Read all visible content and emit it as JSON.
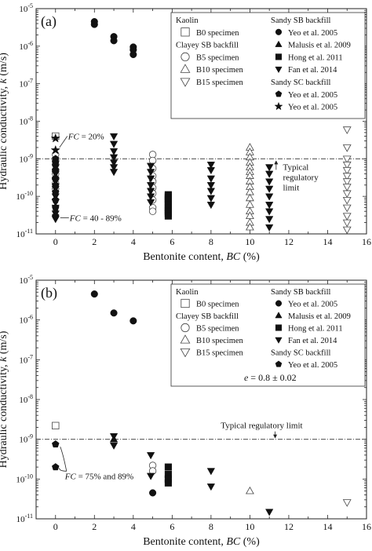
{
  "chart_data": [
    {
      "type": "scatter",
      "panel_label": "(a)",
      "xlabel": "Bentonite content, BC (%)",
      "ylabel": "Hydraulic conductivity, k (m/s)",
      "xlim": [
        -1,
        16
      ],
      "ylim_log10": [
        -11,
        -5
      ],
      "xticks": [
        "0",
        "2",
        "4",
        "6",
        "8",
        "10",
        "12",
        "14",
        "16"
      ],
      "yticks": [
        "10-11",
        "10-10",
        "10-9",
        "10-8",
        "10-7",
        "10-6",
        "10-5"
      ],
      "limit_value": 1e-09,
      "limit_label": [
        "Typical",
        "regulatory",
        "limit"
      ],
      "annotations": [
        "FC = 20%",
        "FC = 40 - 89%"
      ],
      "legend_left": [
        {
          "header": "Kaolin"
        },
        {
          "marker": "square-open",
          "name": "B0 specimen"
        },
        {
          "header": "Clayey SB backfill"
        },
        {
          "marker": "circle-open",
          "name": "B5 specimen"
        },
        {
          "marker": "triangle-up-open",
          "name": "B10 specimen"
        },
        {
          "marker": "triangle-down-open",
          "name": "B15 specimen"
        }
      ],
      "legend_right": [
        {
          "header": "Sandy SB backfill"
        },
        {
          "marker": "circle-fill",
          "name": "Yeo et al. 2005"
        },
        {
          "marker": "triangle-up-fill",
          "name": "Malusis et al. 2009"
        },
        {
          "marker": "square-fill",
          "name": "Hong et al. 2011"
        },
        {
          "marker": "triangle-down-fill",
          "name": "Fan et al. 2014"
        },
        {
          "header": "Sandy SC backfill"
        },
        {
          "marker": "pentagon-fill",
          "name": "Yeo et al. 2005"
        },
        {
          "marker": "star-fill",
          "name": "Yeo et al. 2005"
        }
      ],
      "series": [
        {
          "marker": "square-open",
          "points": [
            [
              0,
              4e-09
            ]
          ]
        },
        {
          "marker": "circle-open",
          "points": [
            [
              0,
              1.3e-09
            ],
            [
              0,
              9e-10
            ],
            [
              0,
              7e-10
            ],
            [
              0,
              5e-10
            ],
            [
              0,
              4e-10
            ],
            [
              0,
              3e-10
            ],
            [
              0,
              2.2e-10
            ],
            [
              0,
              1.6e-10
            ],
            [
              5,
              1.3e-09
            ],
            [
              5,
              9e-10
            ],
            [
              5,
              5.5e-10
            ],
            [
              5,
              3.5e-10
            ],
            [
              5,
              2.5e-10
            ],
            [
              5,
              1.7e-10
            ],
            [
              5,
              1.2e-10
            ],
            [
              5,
              8e-11
            ],
            [
              5,
              5e-11
            ],
            [
              5,
              4e-11
            ]
          ]
        },
        {
          "marker": "triangle-up-open",
          "points": [
            [
              10,
              2e-09
            ],
            [
              10,
              1.5e-09
            ],
            [
              10,
              1.1e-09
            ],
            [
              10,
              8e-10
            ],
            [
              10,
              6e-10
            ],
            [
              10,
              4.5e-10
            ],
            [
              10,
              3.5e-10
            ],
            [
              10,
              2.5e-10
            ],
            [
              10,
              1.8e-10
            ],
            [
              10,
              1.3e-10
            ],
            [
              10,
              9e-11
            ],
            [
              10,
              6e-11
            ],
            [
              10,
              4e-11
            ],
            [
              10,
              3e-11
            ],
            [
              10,
              2e-11
            ],
            [
              10,
              1.5e-11
            ]
          ]
        },
        {
          "marker": "triangle-down-open",
          "points": [
            [
              15,
              6e-09
            ],
            [
              15,
              2e-09
            ],
            [
              15,
              1e-09
            ],
            [
              15,
              7e-10
            ],
            [
              15,
              5e-10
            ],
            [
              15,
              3.5e-10
            ],
            [
              15,
              2.5e-10
            ],
            [
              15,
              1.8e-10
            ],
            [
              15,
              1.2e-10
            ],
            [
              15,
              8e-11
            ],
            [
              15,
              5e-11
            ],
            [
              15,
              3e-11
            ],
            [
              15,
              2e-11
            ],
            [
              15,
              1.3e-11
            ]
          ]
        },
        {
          "marker": "circle-fill",
          "points": [
            [
              2,
              4.5e-06
            ],
            [
              2,
              3.8e-06
            ],
            [
              3,
              1.8e-06
            ],
            [
              3,
              1.4e-06
            ],
            [
              4,
              9.5e-07
            ],
            [
              4,
              8e-07
            ],
            [
              4,
              6e-07
            ]
          ]
        },
        {
          "marker": "triangle-up-fill",
          "points": []
        },
        {
          "marker": "square-fill",
          "points": [
            [
              5.8,
              1.1e-10
            ],
            [
              5.8,
              1e-10
            ],
            [
              5.8,
              9e-11
            ],
            [
              5.8,
              8e-11
            ],
            [
              5.8,
              7e-11
            ],
            [
              5.8,
              6e-11
            ],
            [
              5.8,
              5e-11
            ],
            [
              5.8,
              4.5e-11
            ],
            [
              5.8,
              4e-11
            ],
            [
              5.8,
              3.5e-11
            ],
            [
              5.8,
              3e-11
            ]
          ]
        },
        {
          "marker": "triangle-down-fill",
          "points": [
            [
              0,
              6e-10
            ],
            [
              0,
              4e-10
            ],
            [
              0,
              2.5e-10
            ],
            [
              0,
              1.6e-10
            ],
            [
              0,
              1e-10
            ],
            [
              0,
              7e-11
            ],
            [
              0,
              5e-11
            ],
            [
              0,
              3.5e-11
            ],
            [
              0,
              2.5e-11
            ],
            [
              3,
              4e-09
            ],
            [
              3,
              2.5e-09
            ],
            [
              3,
              1.6e-09
            ],
            [
              3,
              1.1e-09
            ],
            [
              3,
              8e-10
            ],
            [
              3,
              6e-10
            ],
            [
              3,
              4.5e-10
            ],
            [
              4.9,
              6.5e-10
            ],
            [
              4.9,
              4.5e-10
            ],
            [
              4.9,
              3e-10
            ],
            [
              4.9,
              2e-10
            ],
            [
              4.9,
              1.4e-10
            ],
            [
              4.9,
              1e-10
            ],
            [
              4.9,
              7e-11
            ],
            [
              8,
              7e-10
            ],
            [
              8,
              5e-10
            ],
            [
              8,
              3e-10
            ],
            [
              8,
              2e-10
            ],
            [
              8,
              1.4e-10
            ],
            [
              8,
              9e-11
            ],
            [
              8,
              6e-11
            ],
            [
              11,
              6e-10
            ],
            [
              11,
              4e-10
            ],
            [
              11,
              2.5e-10
            ],
            [
              11,
              1.6e-10
            ],
            [
              11,
              1e-10
            ],
            [
              11,
              6e-11
            ],
            [
              11,
              4e-11
            ],
            [
              11,
              2.5e-11
            ],
            [
              11,
              1.5e-11
            ]
          ]
        },
        {
          "marker": "pentagon-fill",
          "points": [
            [
              0,
              1e-09
            ],
            [
              0,
              8e-10
            ],
            [
              0,
              5e-10
            ],
            [
              0,
              3e-10
            ],
            [
              0,
              2e-10
            ],
            [
              0,
              1.3e-10
            ],
            [
              0,
              8e-11
            ],
            [
              0,
              5e-11
            ],
            [
              0,
              3e-11
            ]
          ]
        },
        {
          "marker": "star-fill",
          "points": [
            [
              0,
              3.5e-09
            ],
            [
              0,
              1.7e-09
            ]
          ]
        }
      ]
    },
    {
      "type": "scatter",
      "panel_label": "(b)",
      "xlabel": "Bentonite content, BC (%)",
      "ylabel": "Hydraulic conductivity, k (m/s)",
      "xlim": [
        -1,
        16
      ],
      "ylim_log10": [
        -11,
        -5
      ],
      "xticks": [
        "0",
        "2",
        "4",
        "6",
        "8",
        "10",
        "12",
        "14",
        "16"
      ],
      "yticks": [
        "10-11",
        "10-10",
        "10-9",
        "10-8",
        "10-7",
        "10-6",
        "10-5"
      ],
      "limit_value": 1e-09,
      "limit_label": [
        "Typical regulatory limit"
      ],
      "annotations": [
        "e = 0.8 ± 0.02",
        "FC = 75% and 89%"
      ],
      "legend_left": [
        {
          "header": "Kaolin"
        },
        {
          "marker": "square-open",
          "name": "B0 specimen"
        },
        {
          "header": "Clayey SB backfill"
        },
        {
          "marker": "circle-open",
          "name": "B5 specimen"
        },
        {
          "marker": "triangle-up-open",
          "name": "B10 specimen"
        },
        {
          "marker": "triangle-down-open",
          "name": "B15 specimen"
        }
      ],
      "legend_right": [
        {
          "header": "Sandy SB backfill"
        },
        {
          "marker": "circle-fill",
          "name": "Yeo et al. 2005"
        },
        {
          "marker": "triangle-up-fill",
          "name": "Malusis et al. 2009"
        },
        {
          "marker": "square-fill",
          "name": "Hong et al. 2011"
        },
        {
          "marker": "triangle-down-fill",
          "name": "Fan et al. 2014"
        },
        {
          "header": "Sandy SC backfill"
        },
        {
          "marker": "pentagon-fill",
          "name": "Yeo et al. 2005"
        }
      ],
      "series": [
        {
          "marker": "square-open",
          "points": [
            [
              0,
              2.2e-09
            ]
          ]
        },
        {
          "marker": "circle-open",
          "points": [
            [
              5,
              2.2e-10
            ],
            [
              5,
              1.6e-10
            ]
          ]
        },
        {
          "marker": "triangle-up-open",
          "points": [
            [
              10,
              5e-11
            ]
          ]
        },
        {
          "marker": "triangle-down-open",
          "points": [
            [
              15,
              2.6e-11
            ]
          ]
        },
        {
          "marker": "circle-fill",
          "points": [
            [
              2,
              4.5e-06
            ],
            [
              3,
              1.5e-06
            ],
            [
              4,
              9.5e-07
            ],
            [
              5,
              4.5e-11
            ]
          ]
        },
        {
          "marker": "triangle-up-fill",
          "points": [
            [
              3,
              1e-09
            ]
          ]
        },
        {
          "marker": "square-fill",
          "points": [
            [
              5.8,
              2e-10
            ],
            [
              5.8,
              1.3e-10
            ],
            [
              5.8,
              1e-10
            ],
            [
              5.8,
              8e-11
            ]
          ]
        },
        {
          "marker": "triangle-down-fill",
          "points": [
            [
              3,
              1.2e-09
            ],
            [
              3,
              7e-10
            ],
            [
              4.9,
              4e-10
            ],
            [
              4.9,
              1.2e-10
            ],
            [
              8,
              1.6e-10
            ],
            [
              8,
              6.5e-11
            ],
            [
              11,
              1.5e-11
            ]
          ]
        },
        {
          "marker": "pentagon-fill",
          "points": [
            [
              0,
              7.5e-10
            ],
            [
              0,
              2e-10
            ]
          ]
        }
      ]
    }
  ]
}
